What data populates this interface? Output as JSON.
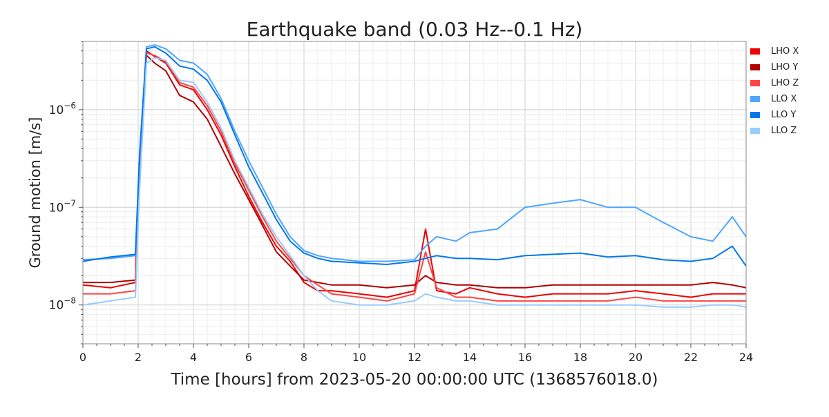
{
  "chart_data": {
    "type": "line",
    "title": "Earthquake band (0.03 Hz--0.1 Hz)",
    "xlabel": "Time [hours] from 2023-05-20 00:00:00 UTC (1368576018.0)",
    "ylabel": "Ground motion [m/s]",
    "xlim": [
      0,
      24
    ],
    "ylim": [
      4e-09,
      5e-06
    ],
    "yscale": "log",
    "grid": true,
    "legend_position": "right",
    "x_ticks": [
      0,
      2,
      4,
      6,
      8,
      10,
      12,
      14,
      16,
      18,
      20,
      22,
      24
    ],
    "x_tick_labels": [
      "0",
      "2",
      "4",
      "6",
      "8",
      "10",
      "12",
      "14",
      "16",
      "18",
      "20",
      "22",
      "24"
    ],
    "y_ticks": [
      1e-08,
      1e-07,
      1e-06
    ],
    "y_tick_labels": [
      {
        "base": "10",
        "exp": "−8"
      },
      {
        "base": "10",
        "exp": "−7"
      },
      {
        "base": "10",
        "exp": "−6"
      }
    ],
    "x": [
      0,
      1,
      1.9,
      2.05,
      2.3,
      2.6,
      3.0,
      3.5,
      4.0,
      4.5,
      5.0,
      5.5,
      6.0,
      6.5,
      7.0,
      7.5,
      8.0,
      8.5,
      9.0,
      10.0,
      11.0,
      12.0,
      12.4,
      12.8,
      13.5,
      14.0,
      15.0,
      16.0,
      17.0,
      18.0,
      19.0,
      20.0,
      21.0,
      22.0,
      22.8,
      23.5,
      24.0
    ],
    "series": [
      {
        "name": "LHO X",
        "color": "#ee0000",
        "values": [
          1.6e-08,
          1.5e-08,
          1.7e-08,
          3e-07,
          4e-06,
          3.5e-06,
          3e-06,
          1.8e-06,
          1.6e-06,
          1e-06,
          5.5e-07,
          2.6e-07,
          1.3e-07,
          7e-08,
          4e-08,
          2.8e-08,
          1.7e-08,
          1.4e-08,
          1.4e-08,
          1.3e-08,
          1.2e-08,
          1.4e-08,
          6e-08,
          1.4e-08,
          1.3e-08,
          1.5e-08,
          1.3e-08,
          1.2e-08,
          1.3e-08,
          1.3e-08,
          1.3e-08,
          1.4e-08,
          1.3e-08,
          1.2e-08,
          1.3e-08,
          1.3e-08,
          1.3e-08
        ]
      },
      {
        "name": "LHO Y",
        "color": "#b00000",
        "values": [
          1.7e-08,
          1.7e-08,
          1.8e-08,
          2.5e-07,
          3.6e-06,
          3e-06,
          2.5e-06,
          1.4e-06,
          1.2e-06,
          8e-07,
          4.2e-07,
          2.2e-07,
          1.2e-07,
          6.5e-08,
          3.5e-08,
          2.5e-08,
          1.8e-08,
          1.7e-08,
          1.6e-08,
          1.6e-08,
          1.5e-08,
          1.6e-08,
          2e-08,
          1.7e-08,
          1.6e-08,
          1.6e-08,
          1.5e-08,
          1.5e-08,
          1.6e-08,
          1.6e-08,
          1.6e-08,
          1.6e-08,
          1.6e-08,
          1.6e-08,
          1.7e-08,
          1.6e-08,
          1.5e-08
        ]
      },
      {
        "name": "LHO Z",
        "color": "#ff4444",
        "values": [
          1.3e-08,
          1.3e-08,
          1.4e-08,
          2e-07,
          3.8e-06,
          3.6e-06,
          3.1e-06,
          1.9e-06,
          1.7e-06,
          1.1e-06,
          6e-07,
          2.8e-07,
          1.5e-07,
          8e-08,
          4.5e-08,
          3e-08,
          2e-08,
          1.6e-08,
          1.3e-08,
          1.2e-08,
          1.1e-08,
          1.3e-08,
          3.5e-08,
          1.5e-08,
          1.2e-08,
          1.2e-08,
          1.1e-08,
          1.1e-08,
          1.1e-08,
          1.1e-08,
          1.1e-08,
          1.2e-08,
          1.1e-08,
          1.1e-08,
          1.1e-08,
          1.1e-08,
          1.1e-08
        ]
      },
      {
        "name": "LLO X",
        "color": "#4da6ff",
        "values": [
          2.9e-08,
          3e-08,
          3.2e-08,
          3e-07,
          4.4e-06,
          4.6e-06,
          4.2e-06,
          3.2e-06,
          3e-06,
          2.3e-06,
          1.3e-06,
          6e-07,
          3e-07,
          1.6e-07,
          8.5e-08,
          5e-08,
          3.6e-08,
          3.2e-08,
          3e-08,
          2.8e-08,
          2.8e-08,
          2.9e-08,
          4e-08,
          5e-08,
          4.5e-08,
          5.5e-08,
          6e-08,
          1e-07,
          1.1e-07,
          1.2e-07,
          1e-07,
          1e-07,
          7e-08,
          5e-08,
          4.5e-08,
          8e-08,
          5e-08
        ]
      },
      {
        "name": "LLO Y",
        "color": "#0077ee",
        "values": [
          2.8e-08,
          3.1e-08,
          3.3e-08,
          3.5e-07,
          4.2e-06,
          4.4e-06,
          3.8e-06,
          2.8e-06,
          2.6e-06,
          2e-06,
          1.2e-06,
          5.5e-07,
          2.6e-07,
          1.4e-07,
          7.5e-08,
          4.5e-08,
          3.4e-08,
          3e-08,
          2.8e-08,
          2.7e-08,
          2.6e-08,
          2.8e-08,
          3e-08,
          3.2e-08,
          3e-08,
          3e-08,
          2.9e-08,
          3.2e-08,
          3.3e-08,
          3.4e-08,
          3.1e-08,
          3.2e-08,
          2.9e-08,
          2.8e-08,
          3e-08,
          4e-08,
          2.5e-08
        ]
      },
      {
        "name": "LLO Z",
        "color": "#99ccff",
        "values": [
          1e-08,
          1.1e-08,
          1.2e-08,
          1.5e-07,
          3e-06,
          3.4e-06,
          3.2e-06,
          2e-06,
          1.9e-06,
          1.2e-06,
          6.5e-07,
          3e-07,
          1.6e-07,
          8.5e-08,
          5e-08,
          3.2e-08,
          2e-08,
          1.4e-08,
          1.1e-08,
          1e-08,
          1e-08,
          1.1e-08,
          1.3e-08,
          1.2e-08,
          1.1e-08,
          1.1e-08,
          1e-08,
          1e-08,
          1e-08,
          1e-08,
          1e-08,
          1e-08,
          9.5e-09,
          9.5e-09,
          1e-08,
          1e-08,
          9.5e-09
        ]
      }
    ]
  }
}
